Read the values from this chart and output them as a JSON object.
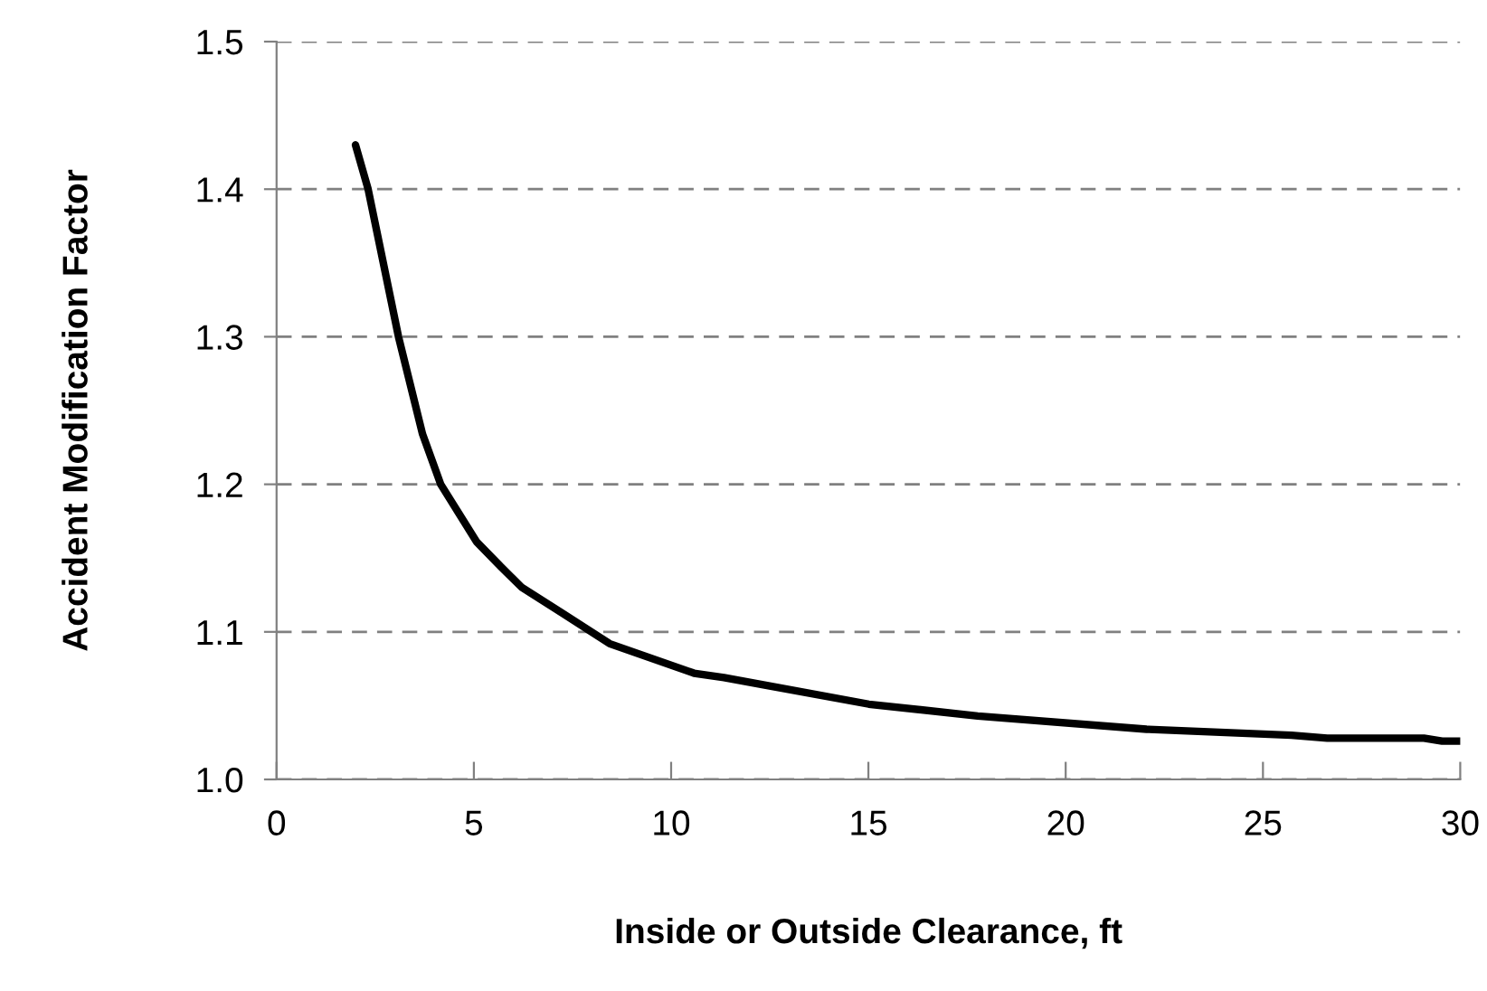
{
  "chart_data": {
    "type": "line",
    "xlabel": "Inside or Outside Clearance, ft",
    "ylabel": "Accident Modification Factor",
    "x": [
      2,
      2.32,
      3.09,
      3.7,
      4.16,
      5.07,
      5.69,
      6.22,
      7.22,
      8.44,
      10.58,
      11.34,
      15.01,
      17.77,
      22.05,
      25.72,
      26.63,
      29.08,
      29.54,
      30
    ],
    "series": [
      {
        "color": "#000000",
        "values": [
          1.43,
          1.4,
          1.3,
          1.234,
          1.2,
          1.161,
          1.144,
          1.13,
          1.113,
          1.092,
          1.072,
          1.069,
          1.051,
          1.043,
          1.034,
          1.03,
          1.028,
          1.028,
          1.026,
          1.026
        ]
      }
    ],
    "xlim": [
      0,
      30
    ],
    "xticks": [
      0,
      5,
      10,
      15,
      20,
      25,
      30
    ],
    "ylim": [
      1.0,
      1.5
    ],
    "yticks": [
      {
        "value": 1.0,
        "label": "1.0"
      },
      1.1,
      1.2,
      1.3,
      1.4,
      {
        "value": 1.5,
        "label": "1.5"
      }
    ],
    "grid": "y",
    "marker": "none",
    "line_style": "solid"
  }
}
